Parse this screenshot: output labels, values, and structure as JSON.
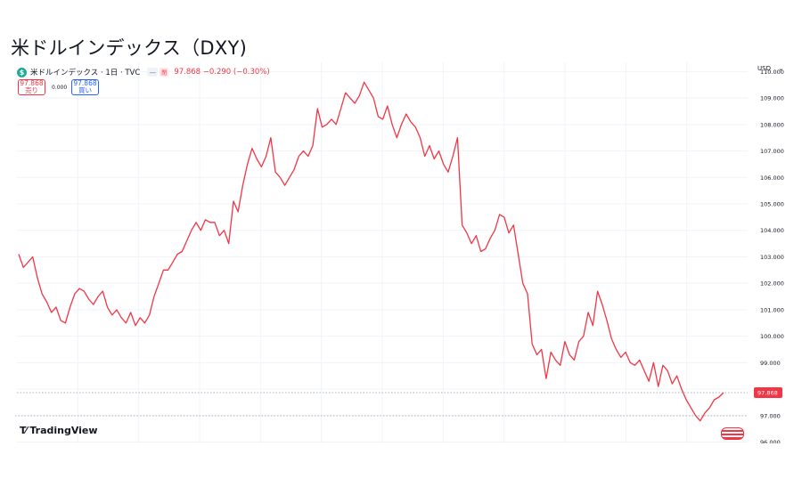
{
  "page": {
    "title": "米ドルインデックス（DXY)"
  },
  "widget_header": {
    "symbol_line": "米ドルインデックス · 1日 · TVC",
    "symbol_icon": "dollar-icon",
    "chip_label": "—",
    "chip_red_label": "閉",
    "last_price_text": "97.868 −0.290 (−0.30%)",
    "currency": "USD"
  },
  "trade_buttons": {
    "sell_price": "97.868",
    "sell_label": "売り",
    "spread": "0.000",
    "buy_price": "97.868",
    "buy_label": "買い"
  },
  "branding": {
    "logo_text": "TradingView",
    "logo_icon": "tradingview-logo-icon"
  },
  "colors": {
    "line": "#f23645",
    "price_tag_bg": "#f23645",
    "grid": "#f0f3fa",
    "axis_text": "#131722"
  },
  "chart_data": {
    "type": "line",
    "title": "米ドルインデックス（DXY)",
    "xlabel": "",
    "ylabel": "",
    "ylim": [
      95.95,
      110.35
    ],
    "y_ticks": [
      "110.000",
      "109.000",
      "108.000",
      "107.000",
      "106.000",
      "105.000",
      "104.000",
      "103.000",
      "102.000",
      "101.000",
      "100.000",
      "99.000",
      "98.000",
      "97.000",
      "96.000"
    ],
    "grid": true,
    "last_value_label": "97.868",
    "series": [
      {
        "values": [
          103.1,
          102.6,
          102.8,
          103.0,
          102.2,
          101.6,
          101.3,
          100.9,
          101.1,
          100.6,
          100.5,
          101.1,
          101.6,
          101.8,
          101.7,
          101.4,
          101.2,
          101.5,
          101.7,
          101.1,
          100.8,
          101.0,
          100.7,
          100.5,
          100.9,
          100.4,
          100.7,
          100.5,
          100.8,
          101.5,
          102.0,
          102.5,
          102.5,
          102.8,
          103.1,
          103.2,
          103.6,
          104.0,
          104.3,
          104.0,
          104.4,
          104.3,
          104.3,
          103.8,
          104.0,
          103.5,
          105.1,
          104.7,
          105.7,
          106.5,
          107.1,
          106.7,
          106.4,
          106.8,
          107.5,
          106.2,
          106.0,
          105.7,
          106.0,
          106.3,
          106.8,
          107.0,
          106.8,
          107.2,
          108.6,
          107.9,
          108.0,
          108.2,
          108.0,
          108.6,
          109.2,
          109.0,
          108.8,
          109.1,
          109.6,
          109.3,
          109.0,
          108.3,
          108.2,
          108.7,
          108.0,
          107.5,
          108.0,
          108.4,
          108.1,
          107.9,
          107.5,
          106.8,
          107.2,
          106.7,
          107.0,
          106.5,
          106.2,
          106.8,
          107.5,
          104.2,
          103.9,
          103.5,
          103.8,
          103.2,
          103.3,
          103.7,
          104.0,
          104.6,
          104.5,
          103.9,
          104.2,
          103.1,
          102.0,
          101.6,
          99.7,
          99.3,
          99.5,
          98.4,
          99.4,
          99.1,
          98.9,
          99.8,
          99.3,
          99.1,
          99.8,
          100.0,
          100.9,
          100.4,
          101.7,
          101.2,
          100.6,
          99.9,
          99.5,
          99.2,
          99.4,
          99.0,
          98.9,
          99.1,
          98.7,
          98.3,
          99.0,
          98.1,
          98.9,
          98.7,
          98.2,
          98.5,
          98.0,
          97.6,
          97.3,
          97.0,
          96.8,
          97.1,
          97.3,
          97.6,
          97.7,
          97.868
        ]
      }
    ]
  }
}
